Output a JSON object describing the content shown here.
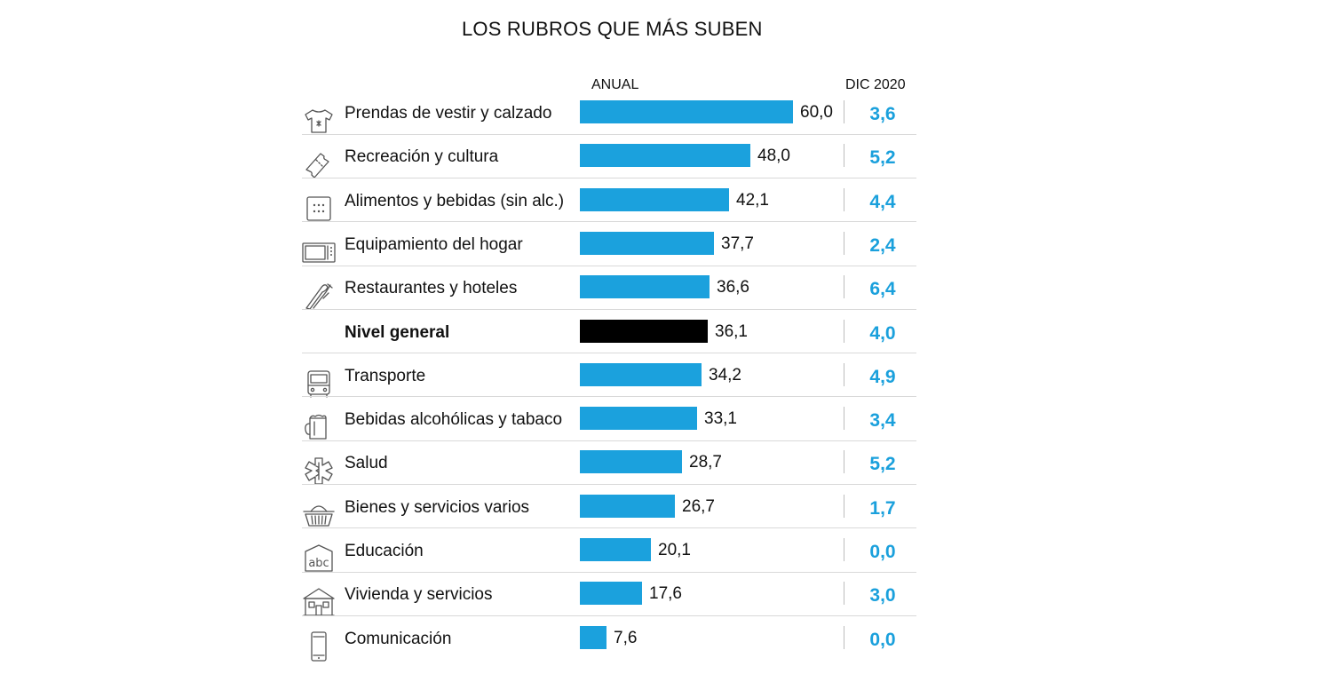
{
  "chart_data": {
    "type": "bar",
    "title": "LOS RUBROS QUE MÁS SUBEN",
    "columns": {
      "annual": "ANUAL",
      "monthly": "DIC 2020"
    },
    "colors": {
      "bar": "#1ba1dd",
      "highlight": "#000000",
      "monthly": "#1aa0dc"
    },
    "xlim": [
      0,
      60
    ],
    "rows": [
      {
        "label": "Prendas de vestir y calzado",
        "icon": "tshirt-icon",
        "value": 60.0,
        "value_text": "60,0",
        "dic": "3,6",
        "highlight": false
      },
      {
        "label": "Recreación y cultura",
        "icon": "ticket-icon",
        "value": 48.0,
        "value_text": "48,0",
        "dic": "5,2",
        "highlight": false
      },
      {
        "label": "Alimentos y bebidas (sin alc.)",
        "icon": "cracker-icon",
        "value": 42.1,
        "value_text": "42,1",
        "dic": "4,4",
        "highlight": false
      },
      {
        "label": "Equipamiento del hogar",
        "icon": "microwave-icon",
        "value": 37.7,
        "value_text": "37,7",
        "dic": "2,4",
        "highlight": false
      },
      {
        "label": "Restaurantes y hoteles",
        "icon": "cutlery-icon",
        "value": 36.6,
        "value_text": "36,6",
        "dic": "6,4",
        "highlight": false
      },
      {
        "label": "Nivel general",
        "icon": "",
        "value": 36.1,
        "value_text": "36,1",
        "dic": "4,0",
        "highlight": true
      },
      {
        "label": "Transporte",
        "icon": "bus-icon",
        "value": 34.2,
        "value_text": "34,2",
        "dic": "4,9",
        "highlight": false
      },
      {
        "label": "Bebidas alcohólicas y tabaco",
        "icon": "beer-mug-icon",
        "value": 33.1,
        "value_text": "33,1",
        "dic": "3,4",
        "highlight": false
      },
      {
        "label": "Salud",
        "icon": "medical-star-icon",
        "value": 28.7,
        "value_text": "28,7",
        "dic": "5,2",
        "highlight": false
      },
      {
        "label": "Bienes y servicios varios",
        "icon": "basket-icon",
        "value": 26.7,
        "value_text": "26,7",
        "dic": "1,7",
        "highlight": false
      },
      {
        "label": "Educación",
        "icon": "abc-board-icon",
        "value": 20.1,
        "value_text": "20,1",
        "dic": "0,0",
        "highlight": false
      },
      {
        "label": "Vivienda y servicios",
        "icon": "house-icon",
        "value": 17.6,
        "value_text": "17,6",
        "dic": "3,0",
        "highlight": false
      },
      {
        "label": "Comunicación",
        "icon": "phone-icon",
        "value": 7.6,
        "value_text": "7,6",
        "dic": "0,0",
        "highlight": false
      }
    ]
  }
}
